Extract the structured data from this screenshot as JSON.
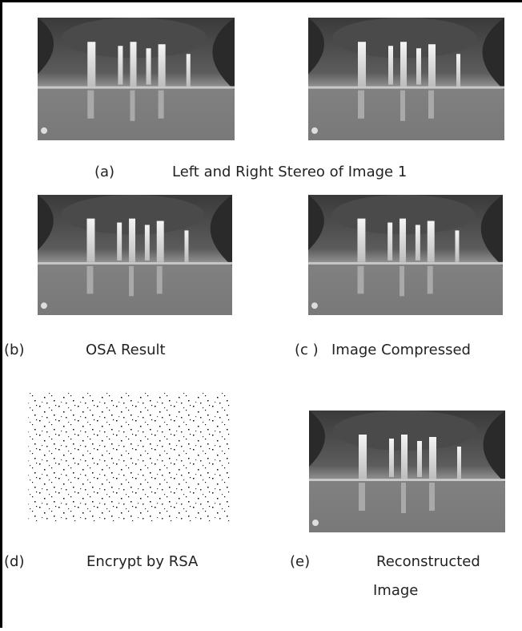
{
  "panels": [
    {
      "label": "(a)",
      "caption": [
        "Left and Right Stereo of Image 1"
      ]
    },
    {
      "label": "(b)",
      "caption": [
        "OSA Result"
      ]
    },
    {
      "label": "(c )",
      "caption": [
        "Image Compressed"
      ]
    },
    {
      "label": "(d)",
      "caption": [
        "Encrypt by RSA"
      ]
    },
    {
      "label": "(e)",
      "caption": [
        "Reconstructed",
        "Image"
      ]
    }
  ]
}
